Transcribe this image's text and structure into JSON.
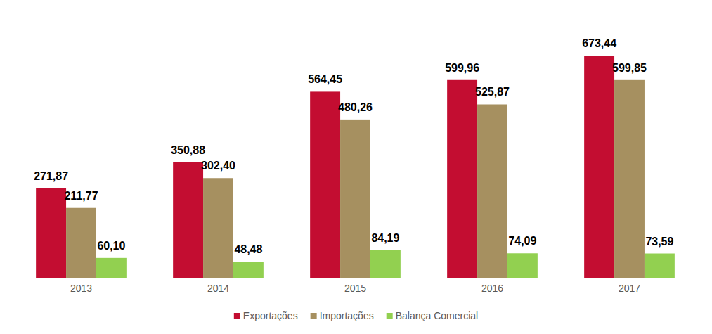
{
  "chart_data": {
    "type": "bar",
    "categories": [
      "2013",
      "2014",
      "2015",
      "2016",
      "2017"
    ],
    "series": [
      {
        "name": "Exportações",
        "color": "#c30d31",
        "values": [
          271.87,
          350.88,
          564.45,
          599.96,
          673.44
        ],
        "value_labels": [
          "271,87",
          "350,88",
          "564,45",
          "599,96",
          "673,44"
        ]
      },
      {
        "name": "Importações",
        "color": "#a69060",
        "values": [
          211.77,
          302.4,
          480.26,
          525.87,
          599.85
        ],
        "value_labels": [
          "211,77",
          "302,40",
          "480,26",
          "525,87",
          "599,85"
        ]
      },
      {
        "name": "Balança Comercial",
        "color": "#92d050",
        "values": [
          60.1,
          48.48,
          84.19,
          74.09,
          73.59
        ],
        "value_labels": [
          "60,10",
          "48,48",
          "84,19",
          "74,09",
          "73,59"
        ]
      }
    ],
    "ylim": [
      0,
      800
    ],
    "yticks": [
      0
    ],
    "data_labels": true,
    "tick_labels": "x",
    "legend": "bottom",
    "grid": false
  }
}
